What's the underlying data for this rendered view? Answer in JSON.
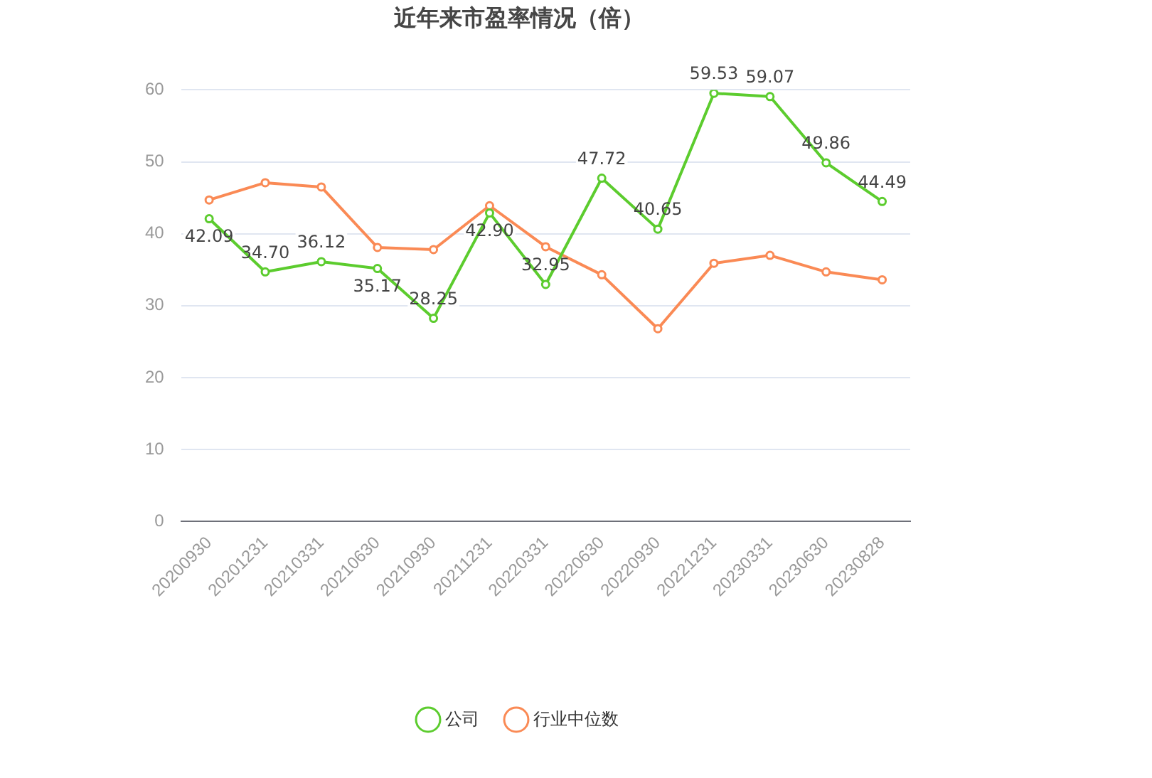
{
  "chart_data": {
    "type": "line",
    "title": "近年来市盈率情况（倍）",
    "categories": [
      "20200930",
      "20201231",
      "20210331",
      "20210630",
      "20210930",
      "20211231",
      "20220331",
      "20220630",
      "20220930",
      "20221231",
      "20230331",
      "20230630",
      "20230828"
    ],
    "series": [
      {
        "name": "公司",
        "color": "#5ccc2e",
        "values": [
          42.09,
          34.7,
          36.12,
          35.17,
          28.25,
          42.9,
          32.95,
          47.72,
          40.65,
          59.53,
          59.07,
          49.86,
          44.49
        ],
        "value_labels": [
          "42.09",
          "34.70",
          "36.12",
          "35.17",
          "28.25",
          "42.90",
          "32.95",
          "47.72",
          "40.65",
          "59.53",
          "59.07",
          "49.86",
          "44.49"
        ]
      },
      {
        "name": "行业中位数",
        "color": "#fa8a55",
        "values": [
          44.7,
          47.1,
          46.5,
          38.1,
          37.8,
          43.9,
          38.2,
          34.3,
          26.8,
          35.9,
          37.0,
          34.7,
          33.6
        ]
      }
    ],
    "ylim": [
      0,
      60
    ],
    "yticks": [
      0,
      10,
      20,
      30,
      40,
      50,
      60
    ],
    "grid": "y",
    "legend": "bottom",
    "marker": "circle",
    "line_style": "solid"
  }
}
